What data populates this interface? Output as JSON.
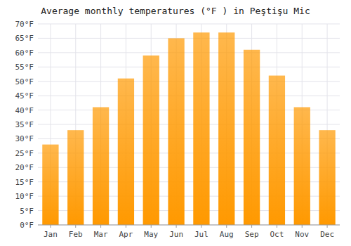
{
  "chart_data": {
    "type": "bar",
    "title": "Average monthly temperatures (°F ) in Peştişu Mic",
    "categories": [
      "Jan",
      "Feb",
      "Mar",
      "Apr",
      "May",
      "Jun",
      "Jul",
      "Aug",
      "Sep",
      "Oct",
      "Nov",
      "Dec"
    ],
    "values": [
      28,
      33,
      41,
      51,
      59,
      65,
      67,
      67,
      61,
      52,
      41,
      33
    ],
    "color": "#FF9900",
    "ylim": [
      0,
      70
    ],
    "yticks": [
      {
        "value": 0,
        "label": "0°F"
      },
      {
        "value": 5,
        "label": "5°F"
      },
      {
        "value": 10,
        "label": "10°F"
      },
      {
        "value": 15,
        "label": "15°F"
      },
      {
        "value": 20,
        "label": "20°F"
      },
      {
        "value": 25,
        "label": "25°F"
      },
      {
        "value": 30,
        "label": "30°F"
      },
      {
        "value": 35,
        "label": "35°F"
      },
      {
        "value": 40,
        "label": "40°F"
      },
      {
        "value": 45,
        "label": "45°F"
      },
      {
        "value": 50,
        "label": "50°F"
      },
      {
        "value": 55,
        "label": "55°F"
      },
      {
        "value": 60,
        "label": "60°F"
      },
      {
        "value": 65,
        "label": "65°F"
      },
      {
        "value": 70,
        "label": "70°F"
      }
    ],
    "grid": true
  }
}
